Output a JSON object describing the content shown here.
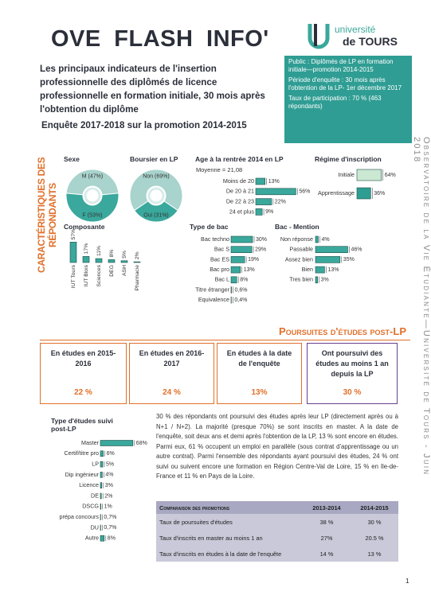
{
  "header": {
    "title": "OVE FLASH INFO'",
    "logo_top": "université",
    "logo_bottom": "de TOURS",
    "subtitle": "Les principaux indicateurs de l'insertion professionnelle des diplômés de licence professionnelle en formation initiale, 30 mois après l'obtention du diplôme",
    "survey": "Enquête 2017-2018 sur la promotion 2014-2015"
  },
  "info_box": [
    "Public : Diplômés de LP en formation initiale—promotion 2014-2015",
    "Période d'enquête : 30 mois après l'obtention de la LP- 1er décembre 2017",
    "Taux de participation : 70 % (463 répondants)"
  ],
  "side_text": "Observatoire de la Vie Étudiante—Université de Tours - Juin 2018",
  "section_1": "CARACTÉRISTIQUES DES RÉPONDANTS",
  "section_2": "Poursuites d'études post-LP",
  "chart_data": [
    {
      "type": "donut",
      "title": "Sexe",
      "values": [
        47,
        53
      ],
      "value_labels": [
        "M (47%)",
        "F (53%)"
      ],
      "colors": [
        "#a9d3cd",
        "#3aa89c"
      ]
    },
    {
      "type": "donut",
      "title": "Boursier en LP",
      "values": [
        69,
        31
      ],
      "value_labels": [
        "Non (69%)",
        "Oui (31%)"
      ],
      "colors": [
        "#a9d3cd",
        "#3aa89c"
      ]
    },
    {
      "type": "hbar",
      "title": "Age à la rentrée 2014 en LP",
      "annotation": "Moyenne = 21,08",
      "categories": [
        "Moins de 20",
        "De 20 à 21",
        "De 22 à 23",
        "24 et plus"
      ],
      "values": [
        13,
        56,
        22,
        9
      ],
      "value_labels": [
        "13%",
        "56%",
        "22%",
        "9%"
      ],
      "color": "#3aa89c"
    },
    {
      "type": "hbar",
      "title": "Régime d'inscription",
      "categories": [
        "Initiale",
        "Apprentissage"
      ],
      "values": [
        64,
        36
      ],
      "value_labels": [
        "64%",
        "36%"
      ],
      "colors": [
        "#cbe8d3",
        "#2e9d92"
      ]
    },
    {
      "type": "vbar",
      "title": "Composante",
      "categories": [
        "IUT Tours",
        "IUT Blois",
        "Sciences",
        "DEG",
        "ASH",
        "Pharmacie"
      ],
      "values": [
        57,
        17,
        11,
        8,
        5,
        2
      ],
      "value_labels": [
        "57%",
        "17%",
        "11%",
        "8%",
        "5%",
        "2%"
      ],
      "color": "#3aa89c"
    },
    {
      "type": "hbar",
      "title": "Type de bac",
      "categories": [
        "Bac techno",
        "Bac S",
        "Bac ES",
        "Bac pro",
        "Bac L",
        "Titre étranger",
        "Equivalence"
      ],
      "values": [
        30,
        29,
        19,
        13,
        8,
        0.6,
        0.4
      ],
      "value_labels": [
        "30%",
        "29%",
        "19%",
        "13%",
        "8%",
        "0,6%",
        "0,4%"
      ],
      "color": "#3aa89c"
    },
    {
      "type": "hbar",
      "title": "Bac - Mention",
      "categories": [
        "Non réponse",
        "Passable",
        "Assez bien",
        "Bien",
        "Tres bien"
      ],
      "values": [
        4,
        46,
        35,
        13,
        3
      ],
      "value_labels": [
        "4%",
        "46%",
        "35%",
        "13%",
        "3%"
      ],
      "color": "#3aa89c"
    },
    {
      "type": "hbar",
      "title": "Type d'études suivi post-LP",
      "categories": [
        "Master",
        "Certif/titre pro",
        "LP",
        "Dip ingénieur",
        "Licence",
        "DE",
        "DSCG",
        "prépa concours",
        "DU",
        "Autre"
      ],
      "values": [
        68,
        6,
        5,
        4,
        3,
        2,
        1,
        0.7,
        0.7,
        8
      ],
      "value_labels": [
        "68%",
        "6%",
        "5%",
        "4%",
        "3%",
        "2%",
        "1%",
        "0,7%",
        "0,7%",
        "8%"
      ],
      "color": "#3aa89c"
    }
  ],
  "boxes": [
    {
      "label": "En études en 2015-2016",
      "value": "22 %"
    },
    {
      "label": "En études en 2016-2017",
      "value": "24 %"
    },
    {
      "label": "En études à la date de l'enquête",
      "value": "13%"
    },
    {
      "label": "Ont poursuivi des études au moins 1 an depuis la LP",
      "value": "30 %"
    }
  ],
  "paragraph": "30 % des répondants ont poursuivi des études après leur LP (directement après ou à N+1 / N+2). La majorité (presque 70%) se sont inscrits en master. A la date de l'enquête, soit deux ans et demi après l'obtention de la LP, 13 % sont encore en études. Parmi eux, 61 % occupent un emploi en parallèle (sous contrat d'apprentissage ou un autre contrat). Parmi l'ensemble des répondants ayant poursuivi des études, 24 % ont suivi ou suivent encore une formation en Région Centre-Val de Loire, 15 % en Ile-de-France et 11 % en Pays de la Loire.",
  "table": {
    "header": [
      "Comparaison des promotions",
      "2013-2014",
      "2014-2015"
    ],
    "rows": [
      [
        "Taux de poursuites d'études",
        "38 %",
        "30 %"
      ],
      [
        "Taux d'inscrits en master au moins 1 an",
        "27%",
        "20.5 %"
      ],
      [
        "Taux d'inscrits en études à la date de l'enquête",
        "14 %",
        "13 %"
      ]
    ]
  },
  "page_number": "1"
}
